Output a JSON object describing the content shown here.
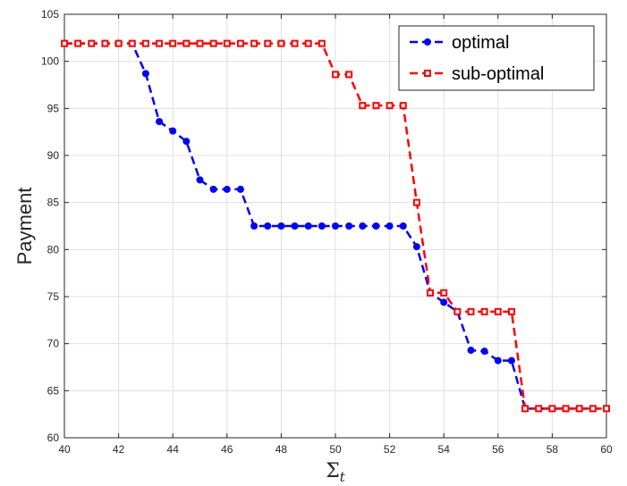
{
  "chart_data": {
    "type": "line",
    "title": "",
    "xlabel": "Σ",
    "xlabel_subscript": "t",
    "ylabel": "Payment",
    "xlim": [
      40,
      60
    ],
    "ylim": [
      60,
      105
    ],
    "xticks": [
      40,
      42,
      44,
      46,
      48,
      50,
      52,
      54,
      56,
      58,
      60
    ],
    "yticks": [
      60,
      65,
      70,
      75,
      80,
      85,
      90,
      95,
      100,
      105
    ],
    "grid": true,
    "legend_position": "top-right",
    "series": [
      {
        "name": "optimal",
        "color": "#0000ff",
        "marker": "filled-circle",
        "line_style": "dashed",
        "x": [
          40,
          40.5,
          41,
          41.5,
          42,
          42.5,
          43,
          43.5,
          44,
          44.5,
          45,
          45.5,
          46,
          46.5,
          47,
          47.5,
          48,
          48.5,
          49,
          49.5,
          50,
          50.5,
          51,
          51.5,
          52,
          52.5,
          53,
          53.5,
          54,
          54.5,
          55,
          55.5,
          56,
          56.5,
          57,
          57.5,
          58,
          58.5,
          59,
          59.5,
          60
        ],
        "y": [
          101.9,
          101.9,
          101.9,
          101.9,
          101.9,
          101.9,
          98.7,
          93.6,
          92.6,
          91.5,
          87.4,
          86.4,
          86.4,
          86.4,
          82.5,
          82.5,
          82.5,
          82.5,
          82.5,
          82.5,
          82.5,
          82.5,
          82.5,
          82.5,
          82.5,
          82.5,
          80.3,
          75.4,
          74.4,
          73.4,
          69.3,
          69.2,
          68.2,
          68.2,
          63.1,
          63.1,
          63.1,
          63.1,
          63.1,
          63.1,
          63.1
        ]
      },
      {
        "name": "sub-optimal",
        "color": "#ff0000",
        "marker": "open-square",
        "line_style": "dashed",
        "x": [
          40,
          40.5,
          41,
          41.5,
          42,
          42.5,
          43,
          43.5,
          44,
          44.5,
          45,
          45.5,
          46,
          46.5,
          47,
          47.5,
          48,
          48.5,
          49,
          49.5,
          50,
          50.5,
          51,
          51.5,
          52,
          52.5,
          53,
          53.5,
          54,
          54.5,
          55,
          55.5,
          56,
          56.5,
          57,
          57.5,
          58,
          58.5,
          59,
          59.5,
          60
        ],
        "y": [
          101.9,
          101.9,
          101.9,
          101.9,
          101.9,
          101.9,
          101.9,
          101.9,
          101.9,
          101.9,
          101.9,
          101.9,
          101.9,
          101.9,
          101.9,
          101.9,
          101.9,
          101.9,
          101.9,
          101.9,
          98.6,
          98.6,
          95.3,
          95.3,
          95.3,
          95.3,
          85.0,
          75.4,
          75.4,
          73.4,
          73.4,
          73.4,
          73.4,
          73.4,
          63.1,
          63.1,
          63.1,
          63.1,
          63.1,
          63.1,
          63.1
        ]
      }
    ]
  }
}
